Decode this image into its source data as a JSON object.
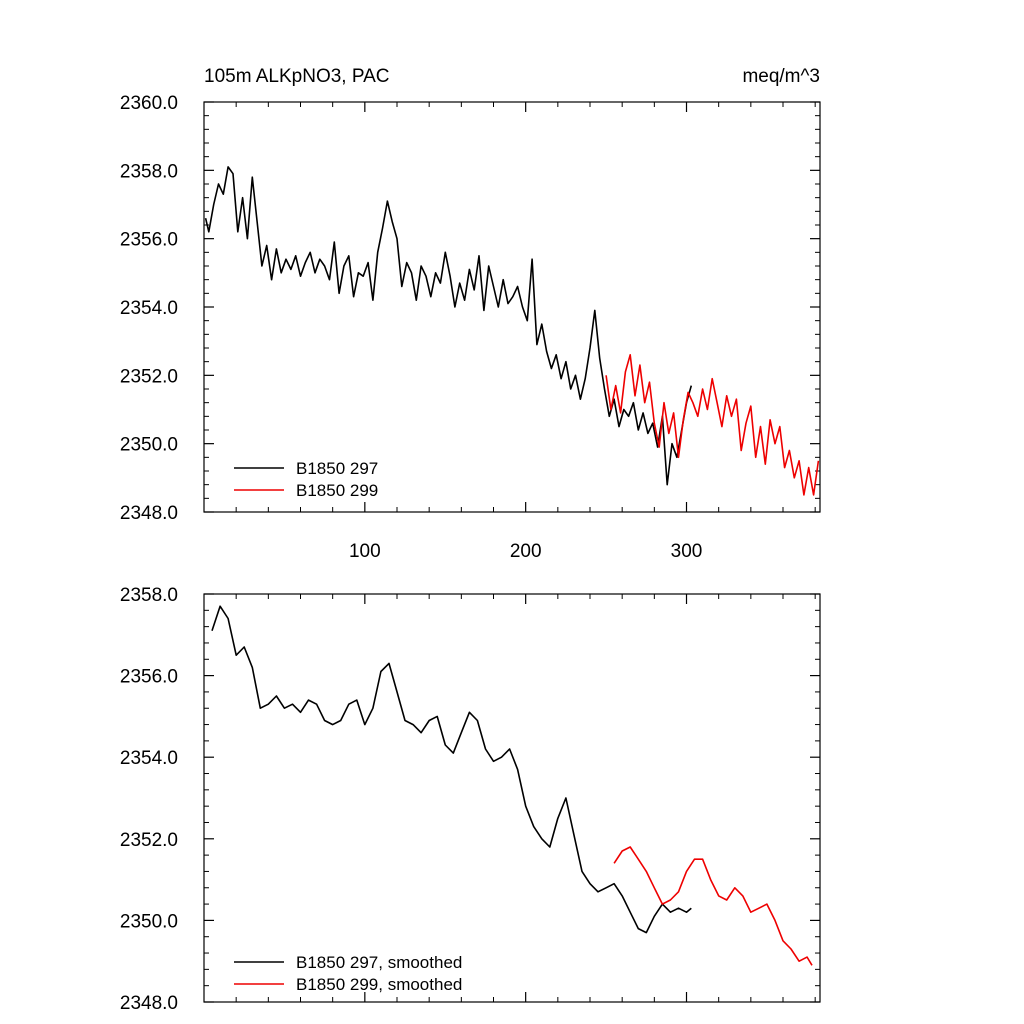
{
  "figure": {
    "title_left": "105m ALKpNO3, PAC",
    "title_right": "meq/m^3"
  },
  "chart_data": [
    {
      "type": "line",
      "panel": "top",
      "xlim": [
        0,
        383
      ],
      "ylim": [
        2348.0,
        2360.0
      ],
      "x_ticks": [
        100,
        200,
        300
      ],
      "x_tick_labels": [
        "100",
        "200",
        "300"
      ],
      "y_ticks": [
        2348,
        2350,
        2352,
        2354,
        2356,
        2358,
        2360
      ],
      "y_tick_labels": [
        "2348.0",
        "2350.0",
        "2352.0",
        "2354.0",
        "2356.0",
        "2358.0",
        "2360.0"
      ],
      "legend_position": "bottom-left",
      "series": [
        {
          "name": "B1850 297",
          "color": "#000000",
          "x": [
            1,
            3,
            6,
            9,
            12,
            15,
            18,
            21,
            24,
            27,
            30,
            33,
            36,
            39,
            42,
            45,
            48,
            51,
            54,
            57,
            60,
            63,
            66,
            69,
            72,
            75,
            78,
            81,
            84,
            87,
            90,
            93,
            96,
            99,
            102,
            105,
            108,
            111,
            114,
            117,
            120,
            123,
            126,
            129,
            132,
            135,
            138,
            141,
            144,
            147,
            150,
            153,
            156,
            159,
            162,
            165,
            168,
            171,
            174,
            177,
            180,
            183,
            186,
            189,
            192,
            195,
            198,
            201,
            204,
            207,
            210,
            213,
            216,
            219,
            222,
            225,
            228,
            231,
            234,
            237,
            240,
            243,
            246,
            249,
            252,
            255,
            258,
            261,
            264,
            267,
            270,
            273,
            276,
            279,
            282,
            285,
            288,
            291,
            294,
            297,
            300,
            303
          ],
          "values": [
            2356.6,
            2356.2,
            2357.0,
            2357.6,
            2357.3,
            2358.1,
            2357.9,
            2356.2,
            2357.2,
            2356.0,
            2357.8,
            2356.5,
            2355.2,
            2355.8,
            2354.8,
            2355.7,
            2355.0,
            2355.4,
            2355.1,
            2355.5,
            2354.9,
            2355.3,
            2355.6,
            2355.0,
            2355.4,
            2355.2,
            2354.8,
            2355.9,
            2354.4,
            2355.2,
            2355.5,
            2354.3,
            2355.0,
            2354.9,
            2355.3,
            2354.2,
            2355.6,
            2356.3,
            2357.1,
            2356.5,
            2356.0,
            2354.6,
            2355.3,
            2355.0,
            2354.2,
            2355.2,
            2354.9,
            2354.3,
            2355.0,
            2354.7,
            2355.6,
            2354.9,
            2354.0,
            2354.7,
            2354.2,
            2355.1,
            2354.5,
            2355.5,
            2353.9,
            2355.2,
            2354.6,
            2354.0,
            2354.8,
            2354.1,
            2354.3,
            2354.6,
            2354.0,
            2353.6,
            2355.4,
            2352.9,
            2353.5,
            2352.7,
            2352.2,
            2352.6,
            2351.9,
            2352.4,
            2351.6,
            2352.0,
            2351.3,
            2351.9,
            2352.8,
            2353.9,
            2352.5,
            2351.6,
            2350.8,
            2351.3,
            2350.5,
            2351.0,
            2350.8,
            2351.2,
            2350.4,
            2350.9,
            2350.3,
            2350.6,
            2349.9,
            2350.8,
            2348.8,
            2350.0,
            2349.6,
            2350.4,
            2351.2,
            2351.7
          ]
        },
        {
          "name": "B1850 299",
          "color": "#ee0000",
          "x": [
            250,
            253,
            256,
            259,
            262,
            265,
            268,
            271,
            274,
            277,
            280,
            283,
            286,
            289,
            292,
            295,
            298,
            301,
            304,
            307,
            310,
            313,
            316,
            319,
            322,
            325,
            328,
            331,
            334,
            337,
            340,
            343,
            346,
            349,
            352,
            355,
            358,
            361,
            364,
            367,
            370,
            373,
            376,
            379,
            382
          ],
          "values": [
            2352.0,
            2351.0,
            2351.7,
            2350.9,
            2352.1,
            2352.6,
            2351.4,
            2352.3,
            2351.2,
            2351.8,
            2350.6,
            2349.9,
            2351.2,
            2350.3,
            2350.9,
            2349.6,
            2350.7,
            2351.5,
            2351.2,
            2350.8,
            2351.6,
            2351.0,
            2351.9,
            2351.2,
            2350.5,
            2351.4,
            2350.8,
            2351.3,
            2349.8,
            2350.6,
            2351.1,
            2349.6,
            2350.5,
            2349.4,
            2350.7,
            2350.0,
            2350.5,
            2349.3,
            2349.8,
            2349.0,
            2349.5,
            2348.5,
            2349.3,
            2348.5,
            2349.5
          ]
        }
      ]
    },
    {
      "type": "line",
      "panel": "bottom",
      "xlim": [
        0,
        383
      ],
      "ylim": [
        2348.0,
        2358.0
      ],
      "x_ticks": [
        100,
        200,
        300
      ],
      "y_ticks": [
        2348,
        2350,
        2352,
        2354,
        2356,
        2358
      ],
      "y_tick_labels": [
        "2348.0",
        "2350.0",
        "2352.0",
        "2354.0",
        "2356.0",
        "2358.0"
      ],
      "legend_position": "bottom-left",
      "series": [
        {
          "name": "B1850 297, smoothed",
          "color": "#000000",
          "x": [
            5,
            10,
            15,
            20,
            25,
            30,
            35,
            40,
            45,
            50,
            55,
            60,
            65,
            70,
            75,
            80,
            85,
            90,
            95,
            100,
            105,
            110,
            115,
            120,
            125,
            130,
            135,
            140,
            145,
            150,
            155,
            160,
            165,
            170,
            175,
            180,
            185,
            190,
            195,
            200,
            205,
            210,
            215,
            220,
            225,
            230,
            235,
            240,
            245,
            250,
            255,
            260,
            265,
            270,
            275,
            280,
            285,
            290,
            295,
            300,
            303
          ],
          "values": [
            2357.1,
            2357.7,
            2357.4,
            2356.5,
            2356.7,
            2356.2,
            2355.2,
            2355.3,
            2355.5,
            2355.2,
            2355.3,
            2355.1,
            2355.4,
            2355.3,
            2354.9,
            2354.8,
            2354.9,
            2355.3,
            2355.4,
            2354.8,
            2355.2,
            2356.1,
            2356.3,
            2355.6,
            2354.9,
            2354.8,
            2354.6,
            2354.9,
            2355.0,
            2354.3,
            2354.1,
            2354.6,
            2355.1,
            2354.9,
            2354.2,
            2353.9,
            2354.0,
            2354.2,
            2353.7,
            2352.8,
            2352.3,
            2352.0,
            2351.8,
            2352.5,
            2353.0,
            2352.1,
            2351.2,
            2350.9,
            2350.7,
            2350.8,
            2350.9,
            2350.6,
            2350.2,
            2349.8,
            2349.7,
            2350.1,
            2350.4,
            2350.2,
            2350.3,
            2350.2,
            2350.3
          ]
        },
        {
          "name": "B1850 299, smoothed",
          "color": "#ee0000",
          "x": [
            255,
            260,
            265,
            270,
            275,
            280,
            285,
            290,
            295,
            300,
            305,
            310,
            315,
            320,
            325,
            330,
            335,
            340,
            345,
            350,
            355,
            360,
            365,
            370,
            375,
            378
          ],
          "values": [
            2351.4,
            2351.7,
            2351.8,
            2351.5,
            2351.2,
            2350.8,
            2350.4,
            2350.5,
            2350.7,
            2351.2,
            2351.5,
            2351.5,
            2351.0,
            2350.6,
            2350.5,
            2350.8,
            2350.6,
            2350.2,
            2350.3,
            2350.4,
            2350.0,
            2349.5,
            2349.3,
            2349.0,
            2349.1,
            2348.9
          ]
        }
      ]
    }
  ]
}
